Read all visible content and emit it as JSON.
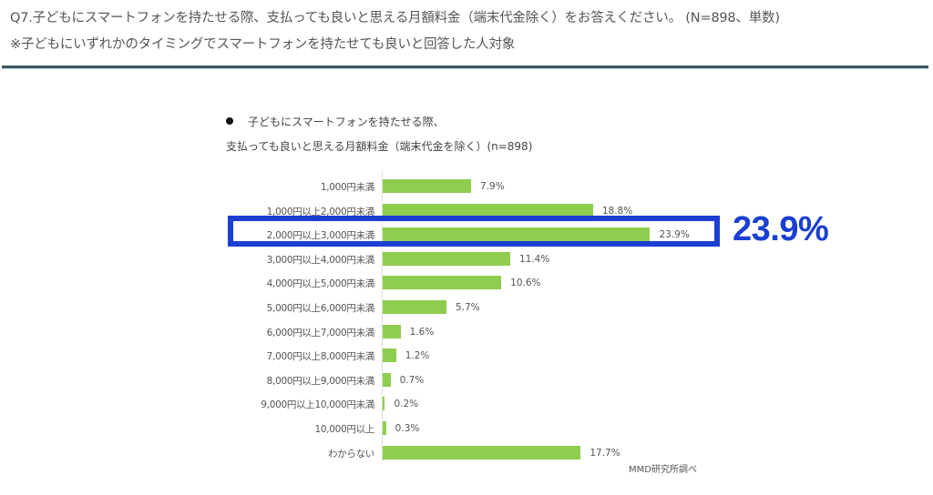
{
  "header": {
    "question": "Q7.子どもにスマートフォンを持たせる際、支払っても良いと思える月額料金（端末代金除く）をお答えください。 (N=898、単数)",
    "note": "※子どもにいずれかのタイミングでスマートフォンを持たせても良いと回答した人対象"
  },
  "chart_data": {
    "type": "bar",
    "orientation": "horizontal",
    "title_line1": "子どもにスマートフォンを持たせる際、",
    "title_line2": "支払っても良いと思える月額料金（端末代金を除く）(n=898)",
    "xlabel": "",
    "ylabel": "",
    "unit": "%",
    "grid": false,
    "legend": null,
    "bar_color": "#8fcd4f",
    "categories": [
      "1,000円未満",
      "1,000円以上2,000円未満",
      "2,000円以上3,000円未満",
      "3,000円以上4,000円未満",
      "4,000円以上5,000円未満",
      "5,000円以上6,000円未満",
      "6,000円以上7,000円未満",
      "7,000円以上8,000円未満",
      "8,000円以上9,000円未満",
      "9,000円以上10,000円未満",
      "10,000円以上",
      "わからない"
    ],
    "values": [
      7.9,
      18.8,
      23.9,
      11.4,
      10.6,
      5.7,
      1.6,
      1.2,
      0.7,
      0.2,
      0.3,
      17.7
    ],
    "value_labels": [
      "7.9%",
      "18.8%",
      "23.9%",
      "11.4%",
      "10.6%",
      "5.7%",
      "1.6%",
      "1.2%",
      "0.7%",
      "0.2%",
      "0.3%",
      "17.7%"
    ],
    "highlight": {
      "category": "2,000円以上3,000円未満",
      "callout": "23.9%",
      "color": "#1a3fd1"
    },
    "source": "MMD研究所調べ"
  }
}
